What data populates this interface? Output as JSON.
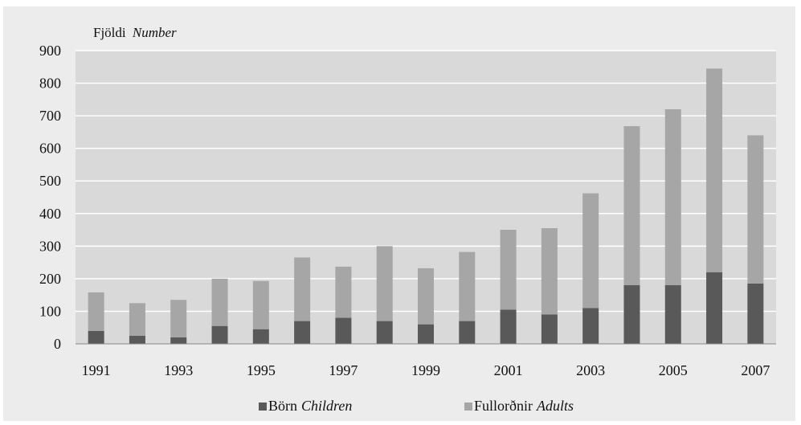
{
  "chart_data": {
    "type": "bar",
    "stacked": true,
    "title": "",
    "ylabel": {
      "main": "Fjöldi",
      "italic": "Number"
    },
    "xlabel": "",
    "ylim": [
      0,
      900
    ],
    "yticks": [
      0,
      100,
      200,
      300,
      400,
      500,
      600,
      700,
      800,
      900
    ],
    "categories": [
      "1991",
      "1992",
      "1993",
      "1994",
      "1995",
      "1996",
      "1997",
      "1998",
      "1999",
      "2000",
      "2001",
      "2002",
      "2003",
      "2004",
      "2005",
      "2006",
      "2007"
    ],
    "xtick_labels": [
      "1991",
      "",
      "1993",
      "",
      "1995",
      "",
      "1997",
      "",
      "1999",
      "",
      "2001",
      "",
      "2003",
      "",
      "2005",
      "",
      "2007"
    ],
    "series": [
      {
        "name": "Börn",
        "name_italic": "Children",
        "color": "#595959",
        "values": [
          40,
          25,
          20,
          55,
          45,
          70,
          80,
          70,
          60,
          70,
          105,
          90,
          110,
          180,
          180,
          220,
          185
        ]
      },
      {
        "name": "Fullorðnir",
        "name_italic": "Adults",
        "color": "#a6a6a6",
        "values": [
          118,
          100,
          115,
          145,
          148,
          195,
          157,
          230,
          172,
          212,
          245,
          265,
          352,
          488,
          540,
          625,
          455
        ]
      }
    ],
    "grid": true,
    "legend_position": "bottom"
  }
}
